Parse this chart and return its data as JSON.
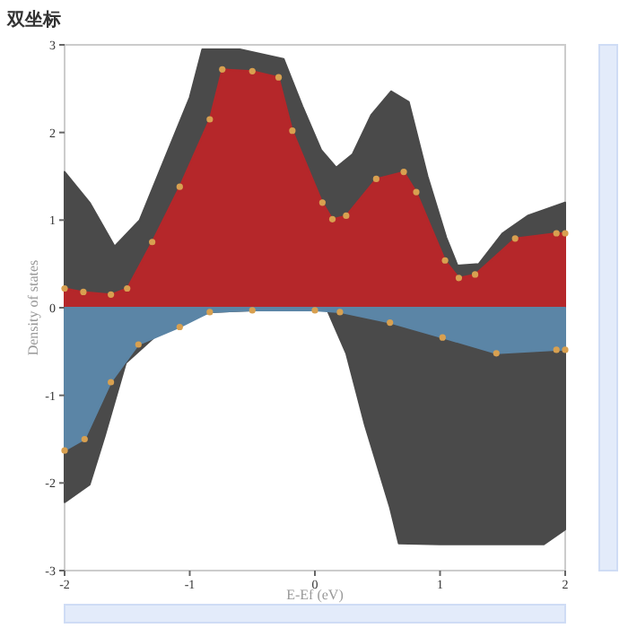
{
  "chart_data": {
    "type": "area",
    "title": "双坐标",
    "xlabel": "E-Ef (eV)",
    "ylabel": "Density of states",
    "xlim": [
      -2,
      2
    ],
    "ylim": [
      -3,
      3
    ],
    "xticks": [
      -2,
      -1,
      0,
      1,
      2
    ],
    "yticks": [
      -3,
      -2,
      -1,
      0,
      1,
      2,
      3
    ],
    "grid": false,
    "series": [
      {
        "color": "#4a4a4a",
        "x": [
          -2,
          -1.8,
          -1.6,
          -1.4,
          -1.2,
          -1.0,
          -0.9,
          -0.6,
          -0.25,
          -0.1,
          0.05,
          0.17,
          0.3,
          0.45,
          0.61,
          0.75,
          0.9,
          1.05,
          1.14,
          1.31,
          1.5,
          1.7,
          2
        ],
        "values": [
          1.55,
          1.2,
          0.7,
          1.0,
          1.7,
          2.4,
          2.95,
          2.95,
          2.84,
          2.3,
          1.8,
          1.6,
          1.75,
          2.2,
          2.47,
          2.35,
          1.5,
          0.8,
          0.48,
          0.5,
          0.85,
          1.05,
          1.2
        ]
      },
      {
        "color": "#4a4a4a",
        "x": [
          -2,
          -1.8,
          -1.68,
          -1.51,
          -1.27,
          -1.0,
          -0.84,
          -0.5,
          0,
          0.1,
          0.25,
          0.4,
          0.6,
          0.67,
          1.0,
          1.5,
          1.83,
          2
        ],
        "values": [
          -2.22,
          -2.02,
          -1.47,
          -0.63,
          -0.32,
          -0.15,
          -0.05,
          -0.03,
          -0.03,
          -0.03,
          -0.52,
          -1.34,
          -2.28,
          -2.69,
          -2.7,
          -2.7,
          -2.7,
          -2.53
        ]
      },
      {
        "color": "#b5272a",
        "marker": "circle",
        "x": [
          -2,
          -1.85,
          -1.63,
          -1.5,
          -1.3,
          -1.08,
          -0.84,
          -0.74,
          -0.5,
          -0.29,
          -0.18,
          0.06,
          0.14,
          0.25,
          0.49,
          0.71,
          0.81,
          1.04,
          1.15,
          1.28,
          1.6,
          1.93,
          2
        ],
        "values": [
          0.22,
          0.18,
          0.15,
          0.22,
          0.75,
          1.38,
          2.15,
          2.72,
          2.7,
          2.63,
          2.02,
          1.2,
          1.01,
          1.05,
          1.47,
          1.55,
          1.32,
          0.54,
          0.34,
          0.38,
          0.79,
          0.85,
          0.85
        ]
      },
      {
        "color": "#5b85a6",
        "marker": "circle",
        "x": [
          -2,
          -1.84,
          -1.63,
          -1.41,
          -1.08,
          -0.84,
          -0.5,
          0,
          0.2,
          0.6,
          1.02,
          1.45,
          1.93,
          2
        ],
        "values": [
          -1.63,
          -1.5,
          -0.85,
          -0.42,
          -0.22,
          -0.05,
          -0.03,
          -0.03,
          -0.05,
          -0.17,
          -0.34,
          -0.52,
          -0.48,
          -0.48
        ]
      }
    ]
  }
}
